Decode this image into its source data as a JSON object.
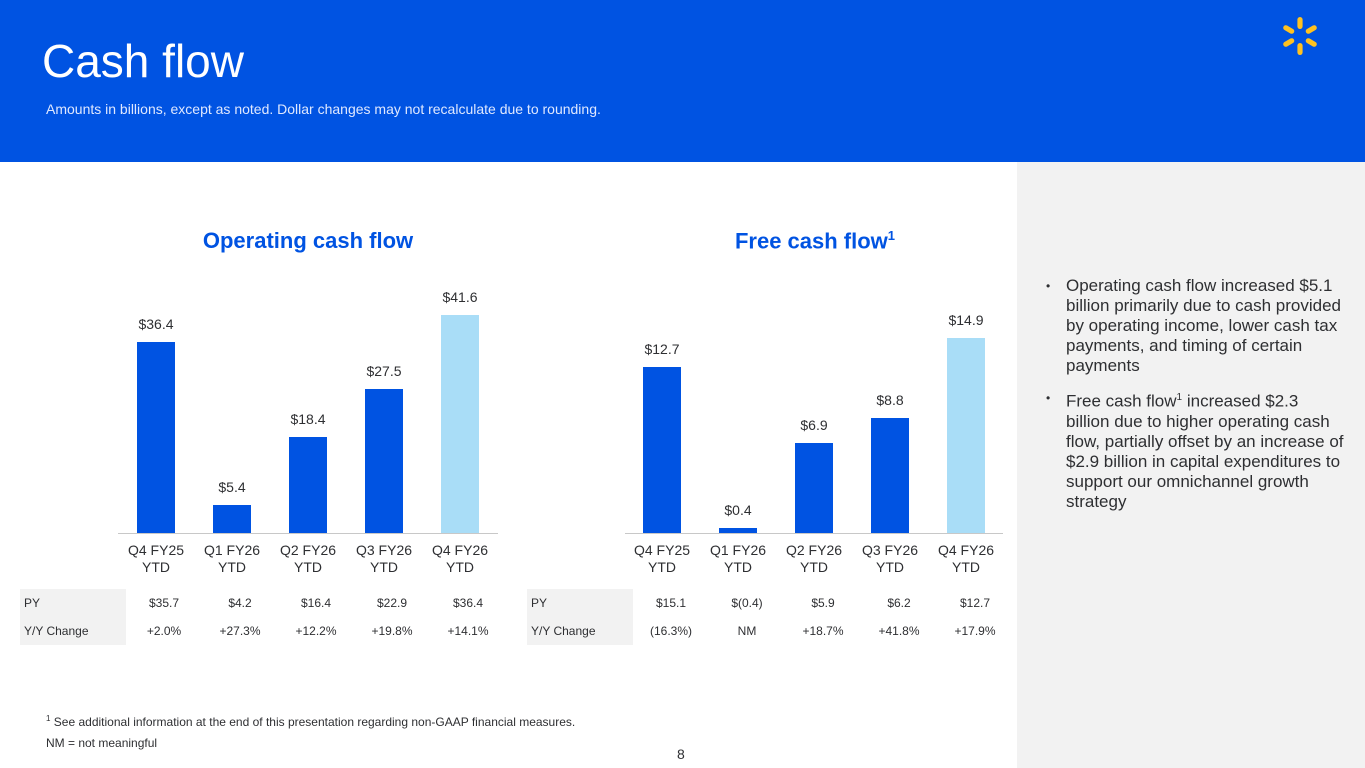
{
  "header": {
    "title": "Cash flow",
    "subtitle": "Amounts in billions, except as noted.  Dollar changes may not recalculate due to rounding."
  },
  "colors": {
    "brand": "#0053e2",
    "highlight": "#a9ddf7",
    "logo": "#ffc220"
  },
  "chart_data": [
    {
      "type": "bar",
      "title": "Operating cash flow",
      "categories": [
        "Q4 FY25\nYTD",
        "Q1 FY26\nYTD",
        "Q2 FY26\nYTD",
        "Q3 FY26\nYTD",
        "Q4 FY26\nYTD"
      ],
      "values": [
        36.4,
        5.4,
        18.4,
        27.5,
        41.6
      ],
      "labels": [
        "$36.4",
        "$5.4",
        "$18.4",
        "$27.5",
        "$41.6"
      ],
      "highlight_index": 4
    },
    {
      "type": "bar",
      "title": "Free cash flow",
      "title_sup": "1",
      "categories": [
        "Q4 FY25\nYTD",
        "Q1 FY26\nYTD",
        "Q2 FY26\nYTD",
        "Q3 FY26\nYTD",
        "Q4 FY26\nYTD"
      ],
      "values": [
        12.7,
        0.4,
        6.9,
        8.8,
        14.9
      ],
      "labels": [
        "$12.7",
        "$0.4",
        "$6.9",
        "$8.8",
        "$14.9"
      ],
      "highlight_index": 4
    }
  ],
  "tables": [
    {
      "rows": [
        {
          "label": "PY",
          "cells": [
            "$35.7",
            "$4.2",
            "$16.4",
            "$22.9",
            "$36.4"
          ]
        },
        {
          "label": "Y/Y Change",
          "cells": [
            "+2.0%",
            "+27.3%",
            "+12.2%",
            "+19.8%",
            "+14.1%"
          ]
        }
      ]
    },
    {
      "rows": [
        {
          "label": "PY",
          "cells": [
            "$15.1",
            "$(0.4)",
            "$5.9",
            "$6.2",
            "$12.7"
          ]
        },
        {
          "label": "Y/Y Change",
          "cells": [
            "(16.3%)",
            "NM",
            "+18.7%",
            "+41.8%",
            "+17.9%"
          ]
        }
      ]
    }
  ],
  "bullets": [
    {
      "text": "Operating cash flow increased $5.1 billion primarily due to cash provided by operating income, lower cash tax payments, and timing of certain payments"
    },
    {
      "pre": "Free cash flow",
      "sup": "1",
      "text": " increased $2.3 billion due to higher operating cash flow, partially offset by an increase of $2.9 billion in capital expenditures to support our omnichannel growth strategy"
    }
  ],
  "footnotes": {
    "sup": "1",
    "note1": "See additional information at the end of this presentation regarding non-GAAP financial measures.",
    "note2": "NM = not meaningful"
  },
  "page_number": "8"
}
